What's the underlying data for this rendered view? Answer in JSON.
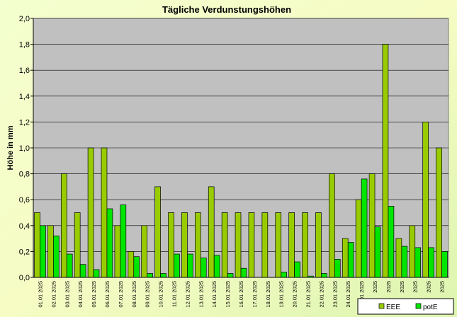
{
  "chart_data": {
    "type": "bar",
    "title": "Tägliche Verdunstungshöhen",
    "y_label": "Höhe in mm",
    "categories": [
      "01.01 2025",
      "02.01 2025",
      "03.01 2025",
      "04.01 2025",
      "05.01 2025",
      "06.01 2025",
      "07.01 2025",
      "08.01 2025",
      "09.01 2025",
      "10.01 2025",
      "11.01 2025",
      "12.01 2025",
      "13.01 2025",
      "14.01 2025",
      "15.01 2025",
      "16.01 2025",
      "17.01 2025",
      "18.01 2025",
      "19.01 2025",
      "20.01 2025",
      "21.01 2025",
      "22.01 2025",
      "23.01 2025",
      "24.01 2025",
      "25.01 2025",
      "2025",
      "2025",
      "2025",
      "2025",
      "2025",
      "2025"
    ],
    "series": [
      {
        "name": "EEE",
        "color": "#99cc00",
        "values": [
          0.5,
          0.4,
          0.8,
          0.5,
          1.0,
          1.0,
          0.4,
          0.2,
          0.4,
          0.7,
          0.5,
          0.5,
          0.5,
          0.7,
          0.5,
          0.5,
          0.5,
          0.5,
          0.5,
          0.5,
          0.5,
          0.5,
          0.8,
          0.3,
          0.6,
          0.8,
          1.8,
          0.3,
          0.4,
          1.2,
          1.0
        ]
      },
      {
        "name": "potE",
        "color": "#00e600",
        "values": [
          0.4,
          0.32,
          0.18,
          0.1,
          0.06,
          0.53,
          0.56,
          0.16,
          0.03,
          0.03,
          0.18,
          0.18,
          0.15,
          0.17,
          0.03,
          0.07,
          0.0,
          0.0,
          0.04,
          0.12,
          0.01,
          0.03,
          0.14,
          0.27,
          0.76,
          0.39,
          0.55,
          0.24,
          0.23,
          0.23,
          0.2
        ]
      }
    ],
    "ylim": [
      0,
      2.0
    ],
    "yticks": [
      {
        "value": 0,
        "label": "0,0"
      },
      {
        "value": 0.2,
        "label": "0,2"
      },
      {
        "value": 0.4,
        "label": "0,4"
      },
      {
        "value": 0.6,
        "label": "0,6"
      },
      {
        "value": 0.8,
        "label": "0,8"
      },
      {
        "value": 1.0,
        "label": "1,0"
      },
      {
        "value": 1.2,
        "label": "1,2"
      },
      {
        "value": 1.4,
        "label": "1,4"
      },
      {
        "value": 1.6,
        "label": "1,6"
      },
      {
        "value": 1.8,
        "label": "1,8"
      },
      {
        "value": 2.0,
        "label": "2,0"
      }
    ],
    "grid": true,
    "legend": "bottom-right"
  }
}
